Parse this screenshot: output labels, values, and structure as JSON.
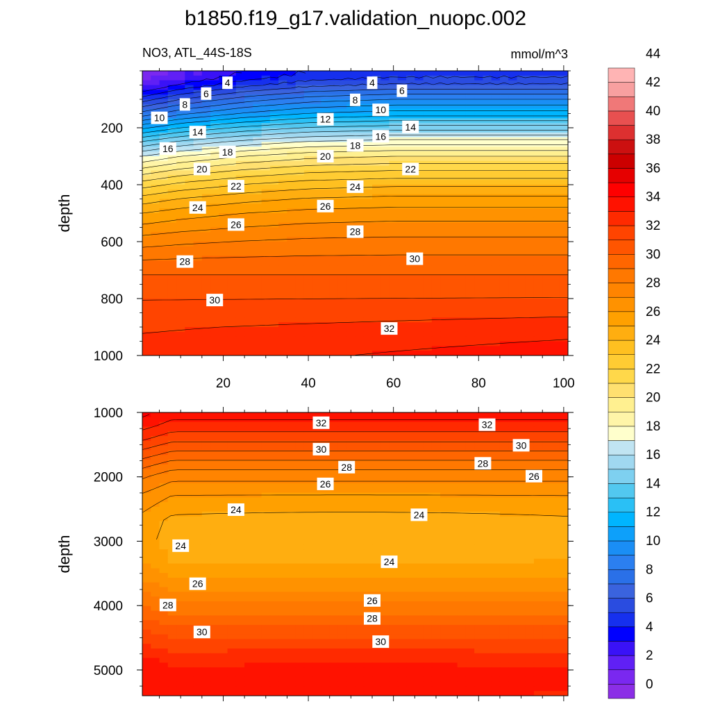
{
  "title": "b1850.f19_g17.validation_nuopc.002",
  "subtitle_left": "NO3, ATL_44S-18S",
  "subtitle_right": "mmol/m^3",
  "chart_data": [
    {
      "type": "heatmap",
      "panel": "upper",
      "ylabel": "depth",
      "xlim": [
        1,
        101
      ],
      "ylim": [
        0,
        1000
      ],
      "y_reversed": true,
      "x_ticks": [
        20,
        40,
        60,
        80,
        100
      ],
      "y_ticks": [
        200,
        400,
        600,
        800,
        1000
      ],
      "contour_labels": [
        {
          "text": "4",
          "x": 21,
          "y": 42
        },
        {
          "text": "6",
          "x": 16,
          "y": 80
        },
        {
          "text": "8",
          "x": 11,
          "y": 118
        },
        {
          "text": "10",
          "x": 5,
          "y": 165
        },
        {
          "text": "14",
          "x": 14,
          "y": 215
        },
        {
          "text": "16",
          "x": 7,
          "y": 273
        },
        {
          "text": "18",
          "x": 21,
          "y": 285
        },
        {
          "text": "20",
          "x": 15,
          "y": 345
        },
        {
          "text": "22",
          "x": 23,
          "y": 405
        },
        {
          "text": "24",
          "x": 14,
          "y": 480
        },
        {
          "text": "26",
          "x": 23,
          "y": 540
        },
        {
          "text": "28",
          "x": 11,
          "y": 670
        },
        {
          "text": "30",
          "x": 18,
          "y": 805
        },
        {
          "text": "4",
          "x": 55,
          "y": 42
        },
        {
          "text": "8",
          "x": 51,
          "y": 102
        },
        {
          "text": "6",
          "x": 62,
          "y": 70
        },
        {
          "text": "10",
          "x": 57,
          "y": 137
        },
        {
          "text": "12",
          "x": 44,
          "y": 170
        },
        {
          "text": "14",
          "x": 64,
          "y": 197
        },
        {
          "text": "16",
          "x": 57,
          "y": 230
        },
        {
          "text": "18",
          "x": 51,
          "y": 262
        },
        {
          "text": "20",
          "x": 44,
          "y": 300
        },
        {
          "text": "22",
          "x": 64,
          "y": 345
        },
        {
          "text": "24",
          "x": 51,
          "y": 407
        },
        {
          "text": "26",
          "x": 44,
          "y": 475
        },
        {
          "text": "28",
          "x": 51,
          "y": 565
        },
        {
          "text": "30",
          "x": 65,
          "y": 660
        },
        {
          "text": "32",
          "x": 59,
          "y": 905
        }
      ],
      "depth_profile": [
        [
          0,
          3.5
        ],
        [
          20,
          3.9
        ],
        [
          50,
          5.2
        ],
        [
          100,
          8.0
        ],
        [
          150,
          10.5
        ],
        [
          200,
          13.5
        ],
        [
          250,
          16.5
        ],
        [
          300,
          19.0
        ],
        [
          350,
          21.0
        ],
        [
          400,
          22.8
        ],
        [
          450,
          24.3
        ],
        [
          500,
          25.5
        ],
        [
          600,
          27.3
        ],
        [
          700,
          28.8
        ],
        [
          800,
          30.0
        ],
        [
          900,
          31.2
        ],
        [
          1000,
          32.0
        ]
      ],
      "profile_offset_by_x": [
        [
          1,
          -4.5
        ],
        [
          10,
          -3.0
        ],
        [
          25,
          -1.5
        ],
        [
          40,
          -0.5
        ],
        [
          60,
          0.0
        ],
        [
          80,
          0.0
        ],
        [
          101,
          0.0
        ]
      ]
    },
    {
      "type": "heatmap",
      "panel": "lower",
      "ylabel": "depth",
      "xlim": [
        1,
        101
      ],
      "ylim": [
        1000,
        5400
      ],
      "y_reversed": true,
      "y_ticks": [
        1000,
        2000,
        3000,
        4000,
        5000
      ],
      "contour_labels": [
        {
          "text": "32",
          "x": 43,
          "y": 1160
        },
        {
          "text": "32",
          "x": 82,
          "y": 1190
        },
        {
          "text": "30",
          "x": 43,
          "y": 1570
        },
        {
          "text": "30",
          "x": 90,
          "y": 1510
        },
        {
          "text": "28",
          "x": 49,
          "y": 1850
        },
        {
          "text": "28",
          "x": 81,
          "y": 1790
        },
        {
          "text": "26",
          "x": 44,
          "y": 2110
        },
        {
          "text": "26",
          "x": 93,
          "y": 1990
        },
        {
          "text": "24",
          "x": 23,
          "y": 2510
        },
        {
          "text": "24",
          "x": 66,
          "y": 2590
        },
        {
          "text": "24",
          "x": 10,
          "y": 3070
        },
        {
          "text": "24",
          "x": 59,
          "y": 3320
        },
        {
          "text": "26",
          "x": 14,
          "y": 3660
        },
        {
          "text": "26",
          "x": 55,
          "y": 3920
        },
        {
          "text": "28",
          "x": 7,
          "y": 3990
        },
        {
          "text": "28",
          "x": 55,
          "y": 4200
        },
        {
          "text": "30",
          "x": 15,
          "y": 4410
        },
        {
          "text": "30",
          "x": 57,
          "y": 4560
        }
      ],
      "depth_profile": [
        [
          1000,
          32.5
        ],
        [
          1200,
          31.6
        ],
        [
          1400,
          30.4
        ],
        [
          1600,
          29.0
        ],
        [
          1800,
          27.6
        ],
        [
          2000,
          26.3
        ],
        [
          2300,
          25.0
        ],
        [
          2700,
          23.9
        ],
        [
          3000,
          23.8
        ],
        [
          3300,
          24.2
        ],
        [
          3600,
          25.2
        ],
        [
          3900,
          26.7
        ],
        [
          4200,
          28.3
        ],
        [
          4500,
          29.9
        ],
        [
          4800,
          31.2
        ],
        [
          5000,
          32.1
        ],
        [
          5200,
          32.2
        ],
        [
          5400,
          31.8
        ]
      ]
    }
  ],
  "colorbar": {
    "levels": [
      "0",
      "2",
      "4",
      "6",
      "8",
      "10",
      "12",
      "14",
      "16",
      "18",
      "20",
      "22",
      "24",
      "26",
      "28",
      "30",
      "32",
      "34",
      "36",
      "38",
      "40",
      "42",
      "44"
    ],
    "colors": [
      "#8b2ee6",
      "#7a28f0",
      "#6020f5",
      "#3a12f7",
      "#0000ff",
      "#1630ee",
      "#2a4ce0",
      "#3a63de",
      "#2a70e8",
      "#2b7ff0",
      "#1a8ef5",
      "#0da0fa",
      "#00b5ff",
      "#2ac0f5",
      "#52c8f0",
      "#7ed0f0",
      "#a0d8f0",
      "#c0e4f2",
      "#ffffcc",
      "#fff5a8",
      "#fff090",
      "#ffe070",
      "#ffd84a",
      "#ffcc33",
      "#ffc020",
      "#ffae10",
      "#ffa000",
      "#ff9200",
      "#ff8400",
      "#ff7800",
      "#ff6600",
      "#ff5500",
      "#ff4400",
      "#ff2a00",
      "#ff1200",
      "#ff0000",
      "#e60000",
      "#cc0000",
      "#cc1010",
      "#dd3030",
      "#e85050",
      "#f07878",
      "#f8a0a0",
      "#ffb4b4"
    ]
  }
}
